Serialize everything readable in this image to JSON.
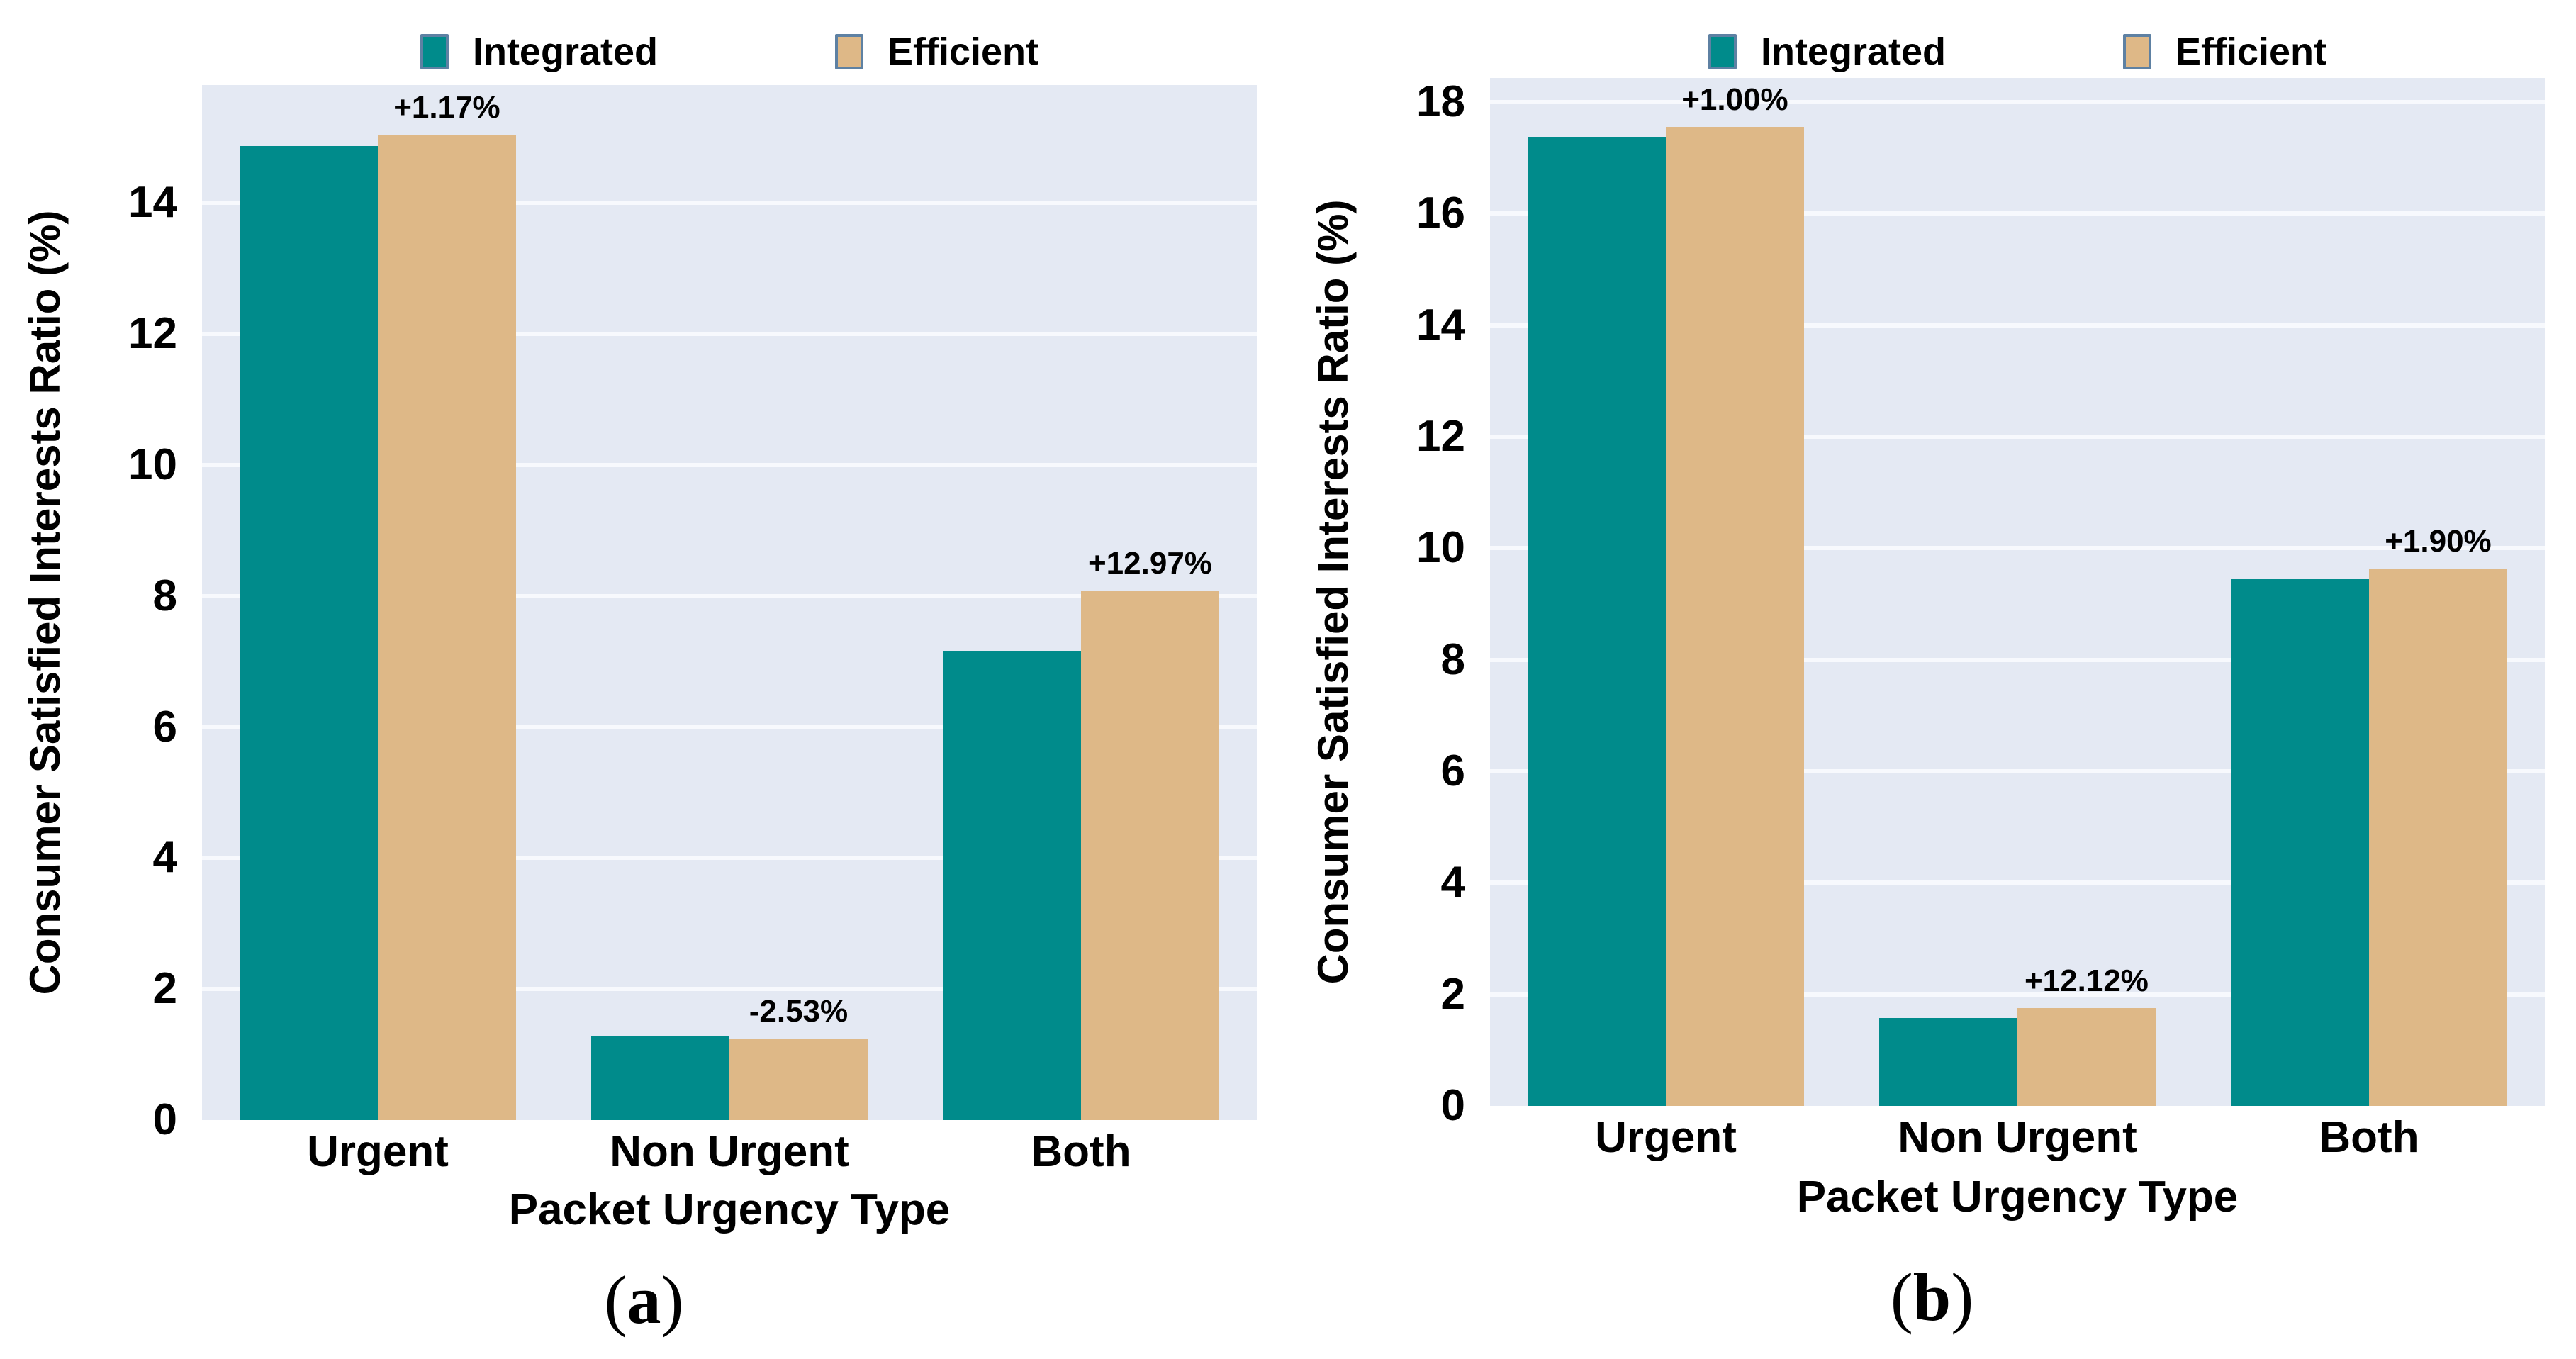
{
  "figure": {
    "background": "#ffffff",
    "plot_background": "#E4E9F3",
    "gridline_color": "#F7F9FD",
    "text_color": "#000000",
    "legend_swatch_border": "#5E81A3",
    "series_colors": {
      "Integrated": "#008B8B",
      "Efficient": "#DEB887"
    }
  },
  "chart_data": [
    {
      "type": "bar",
      "caption": "(a)",
      "xlabel": "Packet Urgency Type",
      "ylabel": "Consumer Satisfied Interests Ratio (%)",
      "categories": [
        "Urgent",
        "Non Urgent",
        "Both"
      ],
      "series": [
        {
          "name": "Integrated",
          "color": "#008B8B",
          "values": [
            14.87,
            1.28,
            7.15
          ]
        },
        {
          "name": "Efficient",
          "color": "#DEB887",
          "values": [
            15.04,
            1.25,
            8.08
          ]
        }
      ],
      "bar_labels": {
        "series": "Efficient",
        "values": [
          "+1.17%",
          "-2.53%",
          "+12.97%"
        ]
      },
      "yticks": [
        0,
        2,
        4,
        6,
        8,
        10,
        12,
        14
      ],
      "ylim": [
        0,
        15.8
      ],
      "grid": true,
      "legend_position": "top",
      "legend_labels": [
        "Integrated",
        "Efficient"
      ]
    },
    {
      "type": "bar",
      "caption": "(b)",
      "xlabel": "Packet Urgency Type",
      "ylabel": "Consumer Satisfied Interests Ratio (%)",
      "categories": [
        "Urgent",
        "Non Urgent",
        "Both"
      ],
      "series": [
        {
          "name": "Integrated",
          "color": "#008B8B",
          "values": [
            17.38,
            1.57,
            9.45
          ]
        },
        {
          "name": "Efficient",
          "color": "#DEB887",
          "values": [
            17.55,
            1.76,
            9.63
          ]
        }
      ],
      "bar_labels": {
        "series": "Efficient",
        "values": [
          "+1.00%",
          "+12.12%",
          "+1.90%"
        ]
      },
      "yticks": [
        0,
        2,
        4,
        6,
        8,
        10,
        12,
        14,
        16,
        18
      ],
      "ylim": [
        0,
        18.43
      ],
      "grid": true,
      "legend_position": "top",
      "legend_labels": [
        "Integrated",
        "Efficient"
      ]
    }
  ]
}
